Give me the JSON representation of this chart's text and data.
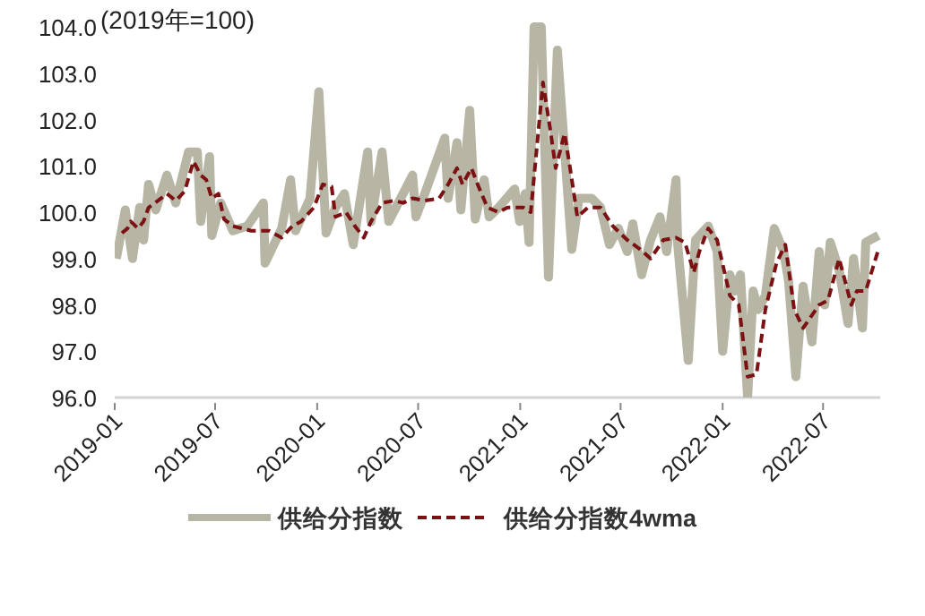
{
  "chart_data": {
    "type": "line",
    "ylabel": "(2019年=100)",
    "xlim": [
      "2019-01-01",
      "2022-10-12"
    ],
    "xticks": [
      {
        "value": "2019-01-01",
        "label": "2019-01"
      },
      {
        "value": "2019-07-01",
        "label": "2019-07"
      },
      {
        "value": "2020-01-01",
        "label": "2020-01"
      },
      {
        "value": "2020-07-01",
        "label": "2020-07"
      },
      {
        "value": "2021-01-01",
        "label": "2021-01"
      },
      {
        "value": "2021-07-01",
        "label": "2021-07"
      },
      {
        "value": "2022-01-01",
        "label": "2022-01"
      },
      {
        "value": "2022-07-01",
        "label": "2022-07"
      }
    ],
    "ylim": [
      96,
      104
    ],
    "yticks": [
      {
        "value": 96,
        "label": "96.0"
      },
      {
        "value": 97,
        "label": "97.0"
      },
      {
        "value": 98,
        "label": "98.0"
      },
      {
        "value": 99,
        "label": "99.0"
      },
      {
        "value": 100,
        "label": "100.0"
      },
      {
        "value": 101,
        "label": "101.0"
      },
      {
        "value": 102,
        "label": "102.0"
      },
      {
        "value": 103,
        "label": "103.0"
      },
      {
        "value": 104,
        "label": "104.0"
      }
    ],
    "legend": "bottom",
    "series": [
      {
        "name": "供给分指数",
        "color": "#b7b5a4",
        "line_style": "solid",
        "x": [
          "2019-01-04",
          "2019-01-20",
          "2019-02-02",
          "2019-02-15",
          "2019-02-22",
          "2019-03-03",
          "2019-03-16",
          "2019-04-05",
          "2019-04-21",
          "2019-05-14",
          "2019-05-30",
          "2019-06-05",
          "2019-06-21",
          "2019-06-25",
          "2019-07-11",
          "2019-08-02",
          "2019-08-28",
          "2019-09-26",
          "2019-09-29",
          "2019-10-29",
          "2019-11-14",
          "2019-11-23",
          "2019-12-19",
          "2020-01-04",
          "2020-01-17",
          "2020-02-03",
          "2020-02-19",
          "2020-03-06",
          "2020-04-01",
          "2020-04-07",
          "2020-04-27",
          "2020-05-09",
          "2020-06-21",
          "2020-06-27",
          "2020-07-13",
          "2020-08-18",
          "2020-08-24",
          "2020-09-09",
          "2020-09-16",
          "2020-10-02",
          "2020-10-12",
          "2020-10-28",
          "2020-11-06",
          "2020-11-23",
          "2020-12-22",
          "2020-12-31",
          "2021-01-10",
          "2021-01-17",
          "2021-01-26",
          "2021-02-08",
          "2021-02-21",
          "2021-03-09",
          "2021-03-22",
          "2021-04-04",
          "2021-04-17",
          "2021-05-10",
          "2021-05-26",
          "2021-06-11",
          "2021-06-27",
          "2021-07-13",
          "2021-07-23",
          "2021-08-08",
          "2021-08-24",
          "2021-09-10",
          "2021-09-22",
          "2021-10-09",
          "2021-10-12",
          "2021-10-31",
          "2021-11-13",
          "2021-12-06",
          "2021-12-22",
          "2022-01-01",
          "2022-01-14",
          "2022-01-23",
          "2022-02-02",
          "2022-02-15",
          "2022-02-25",
          "2022-03-06",
          "2022-03-19",
          "2022-04-04",
          "2022-04-21",
          "2022-04-30",
          "2022-05-13",
          "2022-05-26",
          "2022-06-11",
          "2022-06-24",
          "2022-07-04",
          "2022-07-14",
          "2022-07-30",
          "2022-08-15",
          "2022-08-25",
          "2022-09-10",
          "2022-09-16",
          "2022-10-09"
        ],
        "values": [
          99.0,
          100.05,
          99.0,
          100.1,
          99.4,
          100.6,
          100.05,
          100.8,
          100.2,
          101.3,
          101.3,
          99.8,
          101.2,
          99.5,
          100.2,
          99.6,
          99.7,
          100.2,
          98.9,
          99.65,
          100.7,
          99.6,
          100.3,
          102.6,
          99.55,
          100.1,
          100.4,
          99.3,
          101.3,
          99.8,
          101.3,
          99.8,
          100.8,
          99.9,
          100.4,
          101.6,
          100.3,
          101.5,
          100.05,
          102.2,
          99.85,
          100.7,
          99.9,
          100.1,
          100.5,
          99.8,
          100.4,
          99.35,
          104.0,
          104.0,
          98.6,
          103.5,
          101.35,
          99.2,
          100.3,
          100.3,
          100.1,
          99.3,
          99.65,
          99.15,
          99.75,
          98.65,
          99.4,
          99.9,
          99.15,
          100.7,
          99.3,
          96.8,
          99.4,
          99.7,
          99.15,
          97.0,
          98.65,
          98.3,
          98.65,
          96.0,
          98.3,
          97.9,
          98.2,
          99.65,
          99.15,
          98.5,
          96.45,
          98.4,
          97.2,
          99.15,
          98.0,
          99.35,
          98.75,
          97.6,
          99.0,
          97.5,
          99.35,
          99.5
        ]
      },
      {
        "name": "供给分指数4wma",
        "color": "#7b1113",
        "line_style": "dashed",
        "x": [
          "2019-01-14",
          "2019-01-24",
          "2019-01-30",
          "2019-02-12",
          "2019-02-22",
          "2019-03-03",
          "2019-03-20",
          "2019-04-05",
          "2019-04-21",
          "2019-05-07",
          "2019-05-23",
          "2019-06-05",
          "2019-06-15",
          "2019-06-25",
          "2019-07-07",
          "2019-07-17",
          "2019-08-02",
          "2019-09-04",
          "2019-10-06",
          "2019-10-29",
          "2019-11-17",
          "2019-12-03",
          "2019-12-26",
          "2020-01-11",
          "2020-01-27",
          "2020-02-03",
          "2020-02-22",
          "2020-03-09",
          "2020-03-25",
          "2020-04-07",
          "2020-04-27",
          "2020-05-19",
          "2020-06-04",
          "2020-06-21",
          "2020-07-13",
          "2020-08-08",
          "2020-08-24",
          "2020-09-09",
          "2020-09-19",
          "2020-10-05",
          "2020-10-18",
          "2020-11-03",
          "2020-11-23",
          "2020-12-09",
          "2021-01-07",
          "2021-01-20",
          "2021-02-11",
          "2021-02-24",
          "2021-03-06",
          "2021-03-22",
          "2021-04-01",
          "2021-04-14",
          "2021-05-03",
          "2021-05-26",
          "2021-06-17",
          "2021-07-13",
          "2021-08-05",
          "2021-08-24",
          "2021-09-16",
          "2021-10-09",
          "2021-10-25",
          "2021-11-10",
          "2021-11-20",
          "2021-12-06",
          "2021-12-22",
          "2022-01-14",
          "2022-01-30",
          "2022-02-15",
          "2022-03-03",
          "2022-03-19",
          "2022-04-08",
          "2022-04-24",
          "2022-05-10",
          "2022-05-26",
          "2022-06-24",
          "2022-07-10",
          "2022-07-30",
          "2022-08-21",
          "2022-08-31",
          "2022-09-16",
          "2022-10-09"
        ],
        "values": [
          99.55,
          99.65,
          99.8,
          99.65,
          99.8,
          100.1,
          100.25,
          100.4,
          100.25,
          100.45,
          101.1,
          100.8,
          100.7,
          100.3,
          100.4,
          99.85,
          99.7,
          99.6,
          99.6,
          99.45,
          99.7,
          99.8,
          100.1,
          100.6,
          100.55,
          99.9,
          100.0,
          99.7,
          99.45,
          99.8,
          100.2,
          100.25,
          100.2,
          100.3,
          100.25,
          100.3,
          100.6,
          100.95,
          100.6,
          100.95,
          100.55,
          100.1,
          100.0,
          100.1,
          100.1,
          100.0,
          102.8,
          101.8,
          100.95,
          101.7,
          100.95,
          99.9,
          100.1,
          100.1,
          99.7,
          99.4,
          99.2,
          99.0,
          99.4,
          99.45,
          99.35,
          98.7,
          99.15,
          99.65,
          99.4,
          98.2,
          98.0,
          96.45,
          96.5,
          97.9,
          98.9,
          99.3,
          97.9,
          97.5,
          98.0,
          98.1,
          99.0,
          98.0,
          98.3,
          98.3,
          99.2
        ]
      }
    ]
  }
}
